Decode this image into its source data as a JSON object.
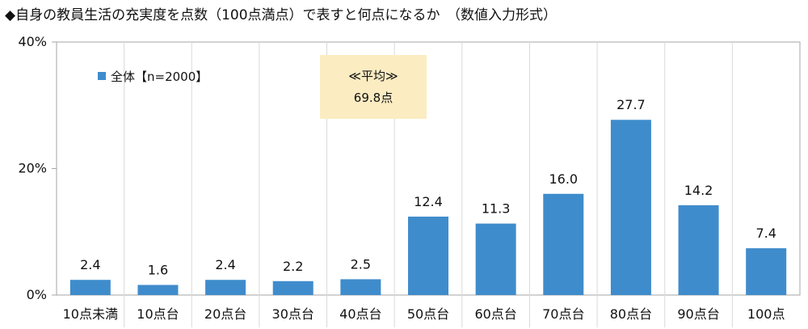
{
  "chart_data": {
    "type": "bar",
    "title": "◆自身の教員生活の充実度を点数（100点満点）で表すと何点になるか　（数値入力形式）",
    "categories": [
      "10点未満",
      "10点台",
      "20点台",
      "30点台",
      "40点台",
      "50点台",
      "60点台",
      "70点台",
      "80点台",
      "90点台",
      "100点"
    ],
    "series": [
      {
        "name": "全体【n=2000】",
        "values": [
          2.4,
          1.6,
          2.4,
          2.2,
          2.5,
          12.4,
          11.3,
          16.0,
          27.7,
          14.2,
          7.4
        ],
        "labels": [
          "2.4",
          "1.6",
          "2.4",
          "2.2",
          "2.5",
          "12.4",
          "11.3",
          "16.0",
          "27.7",
          "14.2",
          "7.4"
        ]
      }
    ],
    "ylim": [
      0,
      40
    ],
    "yticks": [
      0,
      20,
      40
    ],
    "ytick_labels": [
      "0%",
      "20%",
      "40%"
    ],
    "grid": "vertical category separators",
    "legend": "top-left",
    "annotation": {
      "line1": "≪平均≫",
      "line2": "69.8点"
    },
    "colors": {
      "bar": "#3f8ccc",
      "annotation_bg": "#fcecc2",
      "axis": "#a6a6a6",
      "grid": "#d9d9d9"
    }
  }
}
